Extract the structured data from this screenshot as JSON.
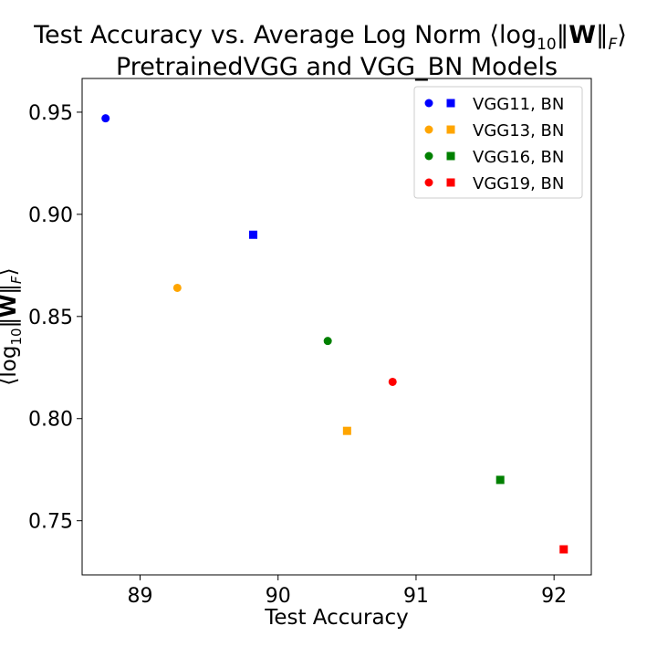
{
  "chart_data": {
    "type": "scatter",
    "title_line1_prefix": "Test Accuracy vs. Average Log Norm ⟨log",
    "title_line1_sub": "10",
    "title_line1_bold": "W",
    "title_line1_norm_sub": "F",
    "title_line2": "PretrainedVGG and VGG_BN Models",
    "xlabel": "Test Accuracy",
    "ylabel_prefix": "⟨log",
    "ylabel_sub": "10",
    "ylabel_bold": "W",
    "ylabel_norm_sub": "F",
    "xlim": [
      88.58,
      92.27
    ],
    "ylim": [
      0.7235,
      0.9665
    ],
    "xticks": [
      89,
      90,
      91,
      92
    ],
    "yticks": [
      0.75,
      0.8,
      0.85,
      0.9,
      0.95
    ],
    "ytick_labels": [
      "0.75",
      "0.80",
      "0.85",
      "0.90",
      "0.95"
    ],
    "legend_position": "top-right",
    "series": [
      {
        "name": "VGG11, BN",
        "color": "#0000ff",
        "points": [
          {
            "marker": "circle",
            "x": 88.75,
            "y": 0.947
          },
          {
            "marker": "square",
            "x": 89.82,
            "y": 0.89
          }
        ]
      },
      {
        "name": "VGG13, BN",
        "color": "#ffa500",
        "points": [
          {
            "marker": "circle",
            "x": 89.27,
            "y": 0.864
          },
          {
            "marker": "square",
            "x": 90.5,
            "y": 0.794
          }
        ]
      },
      {
        "name": "VGG16, BN",
        "color": "#008000",
        "points": [
          {
            "marker": "circle",
            "x": 90.36,
            "y": 0.838
          },
          {
            "marker": "square",
            "x": 91.61,
            "y": 0.77
          }
        ]
      },
      {
        "name": "VGG19, BN",
        "color": "#ff0000",
        "points": [
          {
            "marker": "circle",
            "x": 90.83,
            "y": 0.818
          },
          {
            "marker": "square",
            "x": 92.07,
            "y": 0.736
          }
        ]
      }
    ]
  }
}
